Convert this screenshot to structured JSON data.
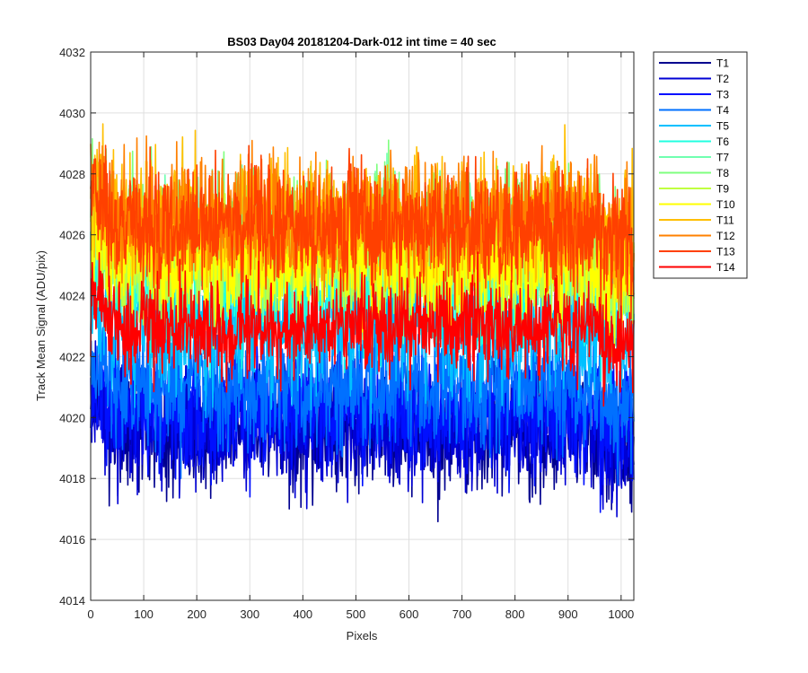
{
  "chart_data": {
    "type": "line",
    "title": "BS03 Day04 20181204-Dark-012 int time = 40 sec",
    "xlabel": "Pixels",
    "ylabel": "Track Mean Signal (ADU/pix)",
    "xlim": [
      0,
      1024
    ],
    "ylim": [
      4014,
      4032
    ],
    "xticks": [
      0,
      100,
      200,
      300,
      400,
      500,
      600,
      700,
      800,
      900,
      1000
    ],
    "yticks": [
      4014,
      4016,
      4018,
      4020,
      4022,
      4024,
      4026,
      4028,
      4030,
      4032
    ],
    "grid": true,
    "legend_position": "outside-top-right",
    "points_per_series": 1024,
    "series": [
      {
        "name": "T1",
        "color": "#00008f",
        "mean": 4019.5,
        "spread": 1.0
      },
      {
        "name": "T2",
        "color": "#0000d4",
        "mean": 4019.8,
        "spread": 1.0
      },
      {
        "name": "T3",
        "color": "#0010ff",
        "mean": 4020.2,
        "spread": 1.0
      },
      {
        "name": "T4",
        "color": "#0070ff",
        "mean": 4021.0,
        "spread": 1.0
      },
      {
        "name": "T5",
        "color": "#00c0ff",
        "mean": 4023.0,
        "spread": 1.1
      },
      {
        "name": "T6",
        "color": "#20ffe0",
        "mean": 4024.5,
        "spread": 1.1
      },
      {
        "name": "T7",
        "color": "#70ffb0",
        "mean": 4025.5,
        "spread": 1.1
      },
      {
        "name": "T8",
        "color": "#7fff7f",
        "mean": 4026.0,
        "spread": 1.1
      },
      {
        "name": "T9",
        "color": "#c0ff40",
        "mean": 4025.0,
        "spread": 1.0
      },
      {
        "name": "T10",
        "color": "#ffff00",
        "mean": 4025.2,
        "spread": 1.0
      },
      {
        "name": "T11",
        "color": "#ffbf00",
        "mean": 4026.5,
        "spread": 1.0
      },
      {
        "name": "T12",
        "color": "#ff8000",
        "mean": 4026.5,
        "spread": 1.0
      },
      {
        "name": "T13",
        "color": "#ff4000",
        "mean": 4026.3,
        "spread": 1.0
      },
      {
        "name": "T14",
        "color": "#ff0000",
        "mean": 4023.0,
        "spread": 0.8
      }
    ]
  }
}
